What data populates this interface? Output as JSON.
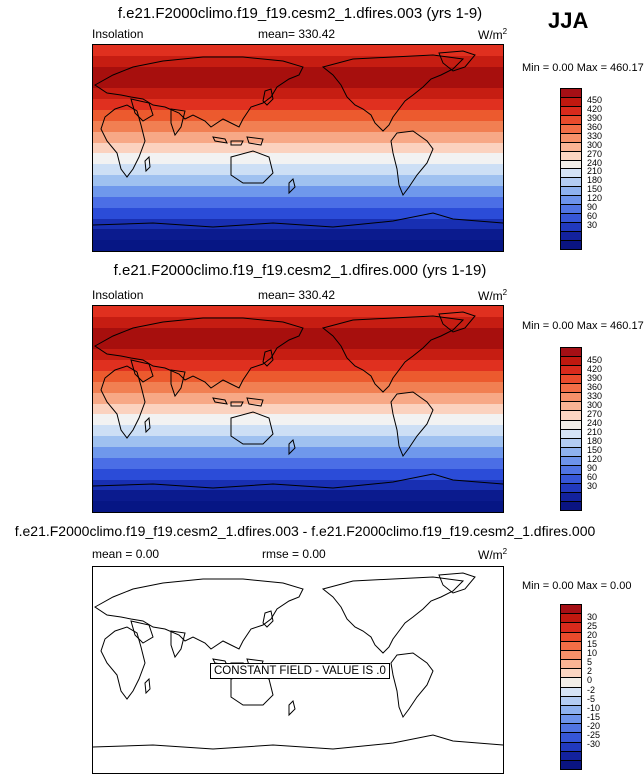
{
  "season": "JJA",
  "panels": [
    {
      "title": "f.e21.F2000climo.f19_f19.cesm2_1.dfires.003 (yrs 1-9)",
      "left": "Insolation",
      "center": "mean= 330.42",
      "units": "W/m",
      "units_sup": "2",
      "minmax": "Min =  0.00 Max = 460.17",
      "ticks": [
        "450",
        "420",
        "390",
        "360",
        "330",
        "300",
        "270",
        "240",
        "210",
        "180",
        "150",
        "120",
        "90",
        "60",
        "30"
      ],
      "bands_hex": [
        "#e0301f",
        "#c61d12",
        "#a70f0d",
        "#a70f0d",
        "#c61d12",
        "#e0301f",
        "#ec5a2e",
        "#f17f52",
        "#f7a886",
        "#fbd2bf",
        "#f2f2f2",
        "#cddff5",
        "#9fc1f0",
        "#6f98ec",
        "#4b6ee6",
        "#2b4cd8",
        "#182fb2",
        "#0b1b8e",
        "#061684"
      ]
    },
    {
      "title": "f.e21.F2000climo.f19_f19.cesm2_1.dfires.000 (yrs 1-19)",
      "left": "Insolation",
      "center": "mean= 330.42",
      "units": "W/m",
      "units_sup": "2",
      "minmax": "Min =  0.00 Max = 460.17",
      "ticks": [
        "450",
        "420",
        "390",
        "360",
        "330",
        "300",
        "270",
        "240",
        "210",
        "180",
        "150",
        "120",
        "90",
        "60",
        "30"
      ],
      "bands_hex": [
        "#e0301f",
        "#c61d12",
        "#a70f0d",
        "#a70f0d",
        "#c61d12",
        "#e0301f",
        "#ec5a2e",
        "#f17f52",
        "#f7a886",
        "#fbd2bf",
        "#f2f2f2",
        "#cddff5",
        "#9fc1f0",
        "#6f98ec",
        "#4b6ee6",
        "#2b4cd8",
        "#182fb2",
        "#0b1b8e",
        "#061684"
      ]
    },
    {
      "title": "f.e21.F2000climo.f19_f19.cesm2_1.dfires.003 - f.e21.F2000climo.f19_f19.cesm2_1.dfires.000",
      "left": "mean =   0.00",
      "center": "rmse =   0.00",
      "units": "W/m",
      "units_sup": "2",
      "minmax": "Min =  0.00 Max =  0.00",
      "ticks": [
        "30",
        "25",
        "20",
        "15",
        "10",
        "5",
        "2",
        "0",
        "-2",
        "-5",
        "-10",
        "-15",
        "-20",
        "-25",
        "-30"
      ],
      "overlay": "CONSTANT FIELD - VALUE IS .0"
    }
  ],
  "colorbar_hex": [
    "#a50f15",
    "#c0180f",
    "#d92a1c",
    "#ea4b2c",
    "#f36e46",
    "#f79169",
    "#fab494",
    "#fcd6c2",
    "#f2eee8",
    "#d5e3f6",
    "#b3ccf3",
    "#8eb1ef",
    "#6d93eb",
    "#5074e3",
    "#3656d7",
    "#2139be",
    "#13229e",
    "#0a1482"
  ]
}
